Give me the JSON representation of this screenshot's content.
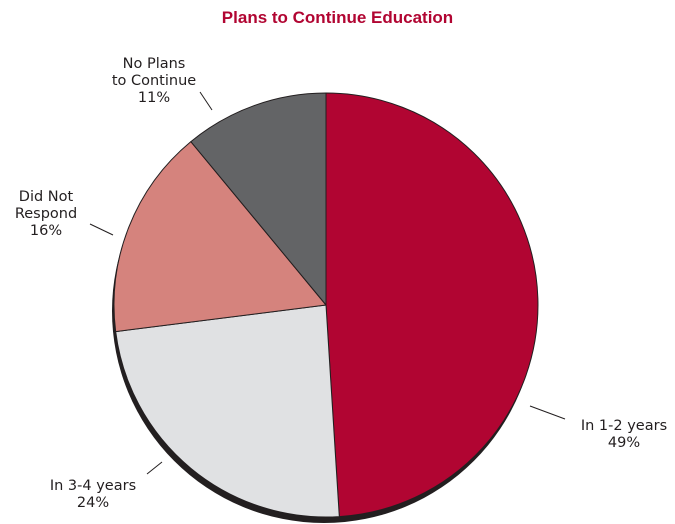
{
  "chart_data": {
    "type": "pie",
    "title": "Plans to Continue Education",
    "slices": [
      {
        "label_lines": [
          "In 1-2 years"
        ],
        "value": 49,
        "value_label": "49%",
        "color": "#b10532"
      },
      {
        "label_lines": [
          "In 3-4 years"
        ],
        "value": 24,
        "value_label": "24%",
        "color": "#e0e1e3"
      },
      {
        "label_lines": [
          "Did Not",
          "Respond"
        ],
        "value": 16,
        "value_label": "16%",
        "color": "#d5837d"
      },
      {
        "label_lines": [
          "No Plans",
          "to Continue"
        ],
        "value": 11,
        "value_label": "11%",
        "color": "#636466"
      }
    ],
    "start": "12 o'clock",
    "direction": "clockwise",
    "slice_outline_color": "#231f20",
    "shadow_color": "#231f20",
    "legend": "none"
  }
}
